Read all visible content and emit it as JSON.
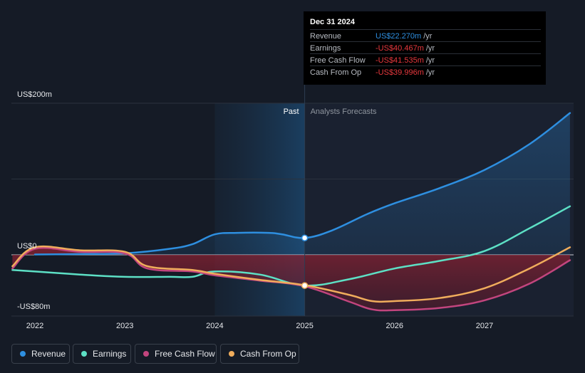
{
  "chart_data": {
    "type": "line",
    "x_ticks": [
      "2022",
      "2023",
      "2024",
      "2025",
      "2026",
      "2027"
    ],
    "y_labels": [
      {
        "text": "US$200m",
        "value": 200
      },
      {
        "text": "US$0",
        "value": 0
      },
      {
        "text": "-US$80m",
        "value": -80
      }
    ],
    "ylim": [
      -80,
      200
    ],
    "xlim": [
      2021.75,
      2027.95
    ],
    "divider_x": 2025.0,
    "highlight_range": [
      2024.0,
      2025.0
    ],
    "past_label": "Past",
    "forecast_label": "Analysts Forecasts",
    "series": [
      {
        "name": "Revenue",
        "color": "#2e8fe0",
        "fill": "positive",
        "points": [
          [
            2022.0,
            0.5
          ],
          [
            2022.5,
            1
          ],
          [
            2023.0,
            2
          ],
          [
            2023.5,
            8
          ],
          [
            2023.75,
            14
          ],
          [
            2024.0,
            27
          ],
          [
            2024.25,
            29
          ],
          [
            2024.6,
            29
          ],
          [
            2024.75,
            27
          ],
          [
            2025.0,
            22.3
          ],
          [
            2025.3,
            32
          ],
          [
            2025.7,
            54
          ],
          [
            2026.0,
            68
          ],
          [
            2026.5,
            88
          ],
          [
            2027.0,
            112
          ],
          [
            2027.5,
            146
          ],
          [
            2027.95,
            187
          ]
        ]
      },
      {
        "name": "Earnings",
        "color": "#5de0c5",
        "fill": "none",
        "points": [
          [
            2021.75,
            -20
          ],
          [
            2022.0,
            -22
          ],
          [
            2022.5,
            -26
          ],
          [
            2023.0,
            -29
          ],
          [
            2023.5,
            -29
          ],
          [
            2023.75,
            -29
          ],
          [
            2024.0,
            -22
          ],
          [
            2024.5,
            -26
          ],
          [
            2025.0,
            -40.5
          ],
          [
            2025.5,
            -32
          ],
          [
            2026.0,
            -18
          ],
          [
            2026.5,
            -8
          ],
          [
            2027.0,
            5
          ],
          [
            2027.5,
            35
          ],
          [
            2027.95,
            64
          ]
        ]
      },
      {
        "name": "Free Cash Flow",
        "color": "#c2457e",
        "fill": "negative",
        "points": [
          [
            2021.75,
            -18
          ],
          [
            2022.0,
            8
          ],
          [
            2022.5,
            4
          ],
          [
            2023.0,
            2
          ],
          [
            2023.25,
            -18
          ],
          [
            2023.75,
            -22
          ],
          [
            2024.0,
            -27
          ],
          [
            2024.5,
            -34
          ],
          [
            2025.0,
            -41.5
          ],
          [
            2025.5,
            -62
          ],
          [
            2025.75,
            -72
          ],
          [
            2026.0,
            -73
          ],
          [
            2026.5,
            -70
          ],
          [
            2027.0,
            -60
          ],
          [
            2027.5,
            -38
          ],
          [
            2027.95,
            -7
          ]
        ]
      },
      {
        "name": "Cash From Op",
        "color": "#f0ad5c",
        "fill": "none",
        "points": [
          [
            2021.75,
            -15
          ],
          [
            2022.0,
            10
          ],
          [
            2022.5,
            6
          ],
          [
            2023.0,
            4
          ],
          [
            2023.25,
            -15
          ],
          [
            2023.75,
            -20
          ],
          [
            2024.0,
            -25
          ],
          [
            2024.5,
            -33
          ],
          [
            2025.0,
            -40
          ],
          [
            2025.5,
            -53
          ],
          [
            2025.75,
            -61
          ],
          [
            2026.0,
            -61
          ],
          [
            2026.5,
            -57
          ],
          [
            2027.0,
            -44
          ],
          [
            2027.5,
            -18
          ],
          [
            2027.95,
            10
          ]
        ]
      }
    ],
    "markers": [
      {
        "x": 2025.0,
        "y": 22.3,
        "fill": "#ffffff",
        "stroke": "#2e8fe0"
      },
      {
        "x": 2025.0,
        "y": -40.5,
        "fill": "#ffffff",
        "stroke": "#f0ad5c"
      }
    ]
  },
  "tooltip": {
    "date": "Dec 31 2024",
    "unit": "/yr",
    "rows": [
      {
        "label": "Revenue",
        "value": "US$22.270m",
        "color": "#2e8fe0"
      },
      {
        "label": "Earnings",
        "value": "-US$40.467m",
        "color": "#e8383d"
      },
      {
        "label": "Free Cash Flow",
        "value": "-US$41.535m",
        "color": "#e8383d"
      },
      {
        "label": "Cash From Op",
        "value": "-US$39.996m",
        "color": "#e8383d"
      }
    ]
  },
  "legend": [
    {
      "label": "Revenue",
      "color": "#2e8fe0"
    },
    {
      "label": "Earnings",
      "color": "#5de0c5"
    },
    {
      "label": "Free Cash Flow",
      "color": "#c2457e"
    },
    {
      "label": "Cash From Op",
      "color": "#f0ad5c"
    }
  ]
}
